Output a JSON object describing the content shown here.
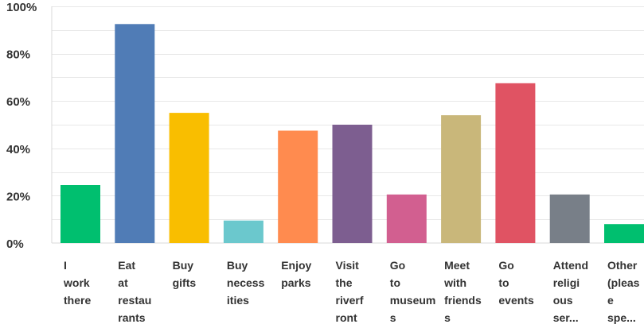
{
  "chart_data": {
    "type": "bar",
    "title": "",
    "xlabel": "",
    "ylabel": "",
    "ylim": [
      0,
      100
    ],
    "y_ticks": [
      "0%",
      "20%",
      "40%",
      "60%",
      "80%",
      "100%"
    ],
    "y_tick_values": [
      0,
      20,
      40,
      60,
      80,
      100
    ],
    "grid": true,
    "categories": [
      "I work there",
      "Eat at restaurants",
      "Buy gifts",
      "Buy necessities",
      "Enjoy parks",
      "Visit the riverfront",
      "Go to museums",
      "Meet with friends",
      "Go to events",
      "Attend religious ser...",
      "Other (please spe..."
    ],
    "category_label_lines": [
      [
        "I",
        "work",
        "there"
      ],
      [
        "Eat",
        "at",
        "restau",
        "rants"
      ],
      [
        "Buy",
        "gifts"
      ],
      [
        "Buy",
        "necess",
        "ities"
      ],
      [
        "Enjoy",
        "parks"
      ],
      [
        "Visit",
        "the",
        "riverf",
        "ront"
      ],
      [
        "Go",
        "to",
        "museum",
        "s"
      ],
      [
        "Meet",
        "with",
        "friends",
        "s"
      ],
      [
        "Go",
        "to",
        "events"
      ],
      [
        "Attend",
        "religi",
        "ous",
        "ser..."
      ],
      [
        "Other",
        "(pleas",
        "e",
        "spe..."
      ]
    ],
    "values": [
      24.5,
      92.5,
      55,
      9.5,
      47.5,
      50,
      20.5,
      54,
      67.5,
      20.5,
      8
    ],
    "colors": [
      "#00BF6F",
      "#507CB6",
      "#F9BE00",
      "#6BC8CD",
      "#FF8B4F",
      "#7D5E90",
      "#D25F90",
      "#C9B77A",
      "#E05363",
      "#787F88",
      "#00BF6F"
    ]
  }
}
